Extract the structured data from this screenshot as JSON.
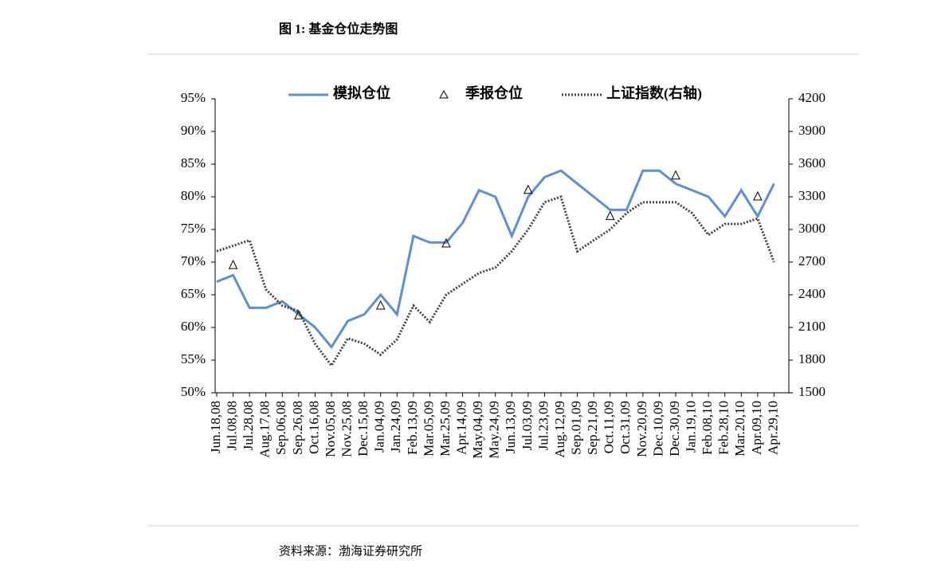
{
  "header": {
    "title": "图 1:  基金仓位走势图"
  },
  "chart_data": {
    "type": "line",
    "categories": [
      "Jun.18,08",
      "Jul.08,08",
      "Jul.28,08",
      "Aug.17,08",
      "Sep.06,08",
      "Sep.26,08",
      "Oct.16,08",
      "Nov.05,08",
      "Nov.25,08",
      "Dec.15,08",
      "Jan.04,09",
      "Jan.24,09",
      "Feb.13,09",
      "Mar.05,09",
      "Mar.25,09",
      "Apr.14,09",
      "May.04,09",
      "May.24,09",
      "Jun.13,09",
      "Jul.03,09",
      "Jul.23,09",
      "Aug.12,09",
      "Sep.01,09",
      "Sep.21,09",
      "Oct.11,09",
      "Oct.31,09",
      "Nov.20,09",
      "Dec.10,09",
      "Dec.30,09",
      "Jan.19,10",
      "Feb.08,10",
      "Feb.28,10",
      "Mar.20,10",
      "Apr.09,10",
      "Apr.29,10"
    ],
    "series": [
      {
        "name": "模拟仓位",
        "color": "#5b8fd6",
        "style": "solid",
        "values": [
          67,
          68,
          63,
          63,
          64,
          62,
          60,
          57,
          61,
          62,
          65,
          62,
          74,
          73,
          73,
          76,
          81,
          80,
          74,
          80,
          83,
          84,
          82,
          80,
          78,
          78,
          84,
          84,
          82,
          81,
          80,
          77,
          81,
          77,
          82
        ]
      },
      {
        "name": "季报仓位",
        "color": "#000000",
        "style": "triangle",
        "values": [
          null,
          69.5,
          null,
          null,
          null,
          61.8,
          null,
          null,
          null,
          null,
          63.3,
          null,
          null,
          null,
          72.8,
          null,
          null,
          null,
          null,
          81,
          null,
          null,
          null,
          null,
          77,
          null,
          null,
          null,
          83.2,
          null,
          null,
          null,
          null,
          80,
          null
        ]
      },
      {
        "name": "上证指数(右轴)",
        "color": "#404040",
        "style": "dotted",
        "axis": "y2",
        "values": [
          2800,
          2850,
          2900,
          2450,
          2300,
          2250,
          1950,
          1750,
          2000,
          1950,
          1850,
          1990,
          2300,
          2150,
          2400,
          2500,
          2600,
          2650,
          2800,
          3000,
          3250,
          3300,
          2800,
          2900,
          3000,
          3150,
          3250,
          3250,
          3250,
          3150,
          2950,
          3050,
          3050,
          3100,
          2700
        ]
      }
    ],
    "ylim": [
      50,
      95
    ],
    "yticks": [
      {
        "value": 50,
        "label": "50%"
      },
      {
        "value": 55,
        "label": "55%"
      },
      {
        "value": 60,
        "label": "60%"
      },
      {
        "value": 65,
        "label": "65%"
      },
      {
        "value": 70,
        "label": "70%"
      },
      {
        "value": 75,
        "label": "75%"
      },
      {
        "value": 80,
        "label": "80%"
      },
      {
        "value": 85,
        "label": "85%"
      },
      {
        "value": 90,
        "label": "90%"
      },
      {
        "value": 95,
        "label": "95%"
      }
    ],
    "y2lim": [
      1500,
      4200
    ],
    "y2ticks": [
      1500,
      1800,
      2100,
      2400,
      2700,
      3000,
      3300,
      3600,
      3900,
      4200
    ],
    "legend": "top"
  },
  "footer": {
    "source": "资料来源：渤海证券研究所"
  }
}
